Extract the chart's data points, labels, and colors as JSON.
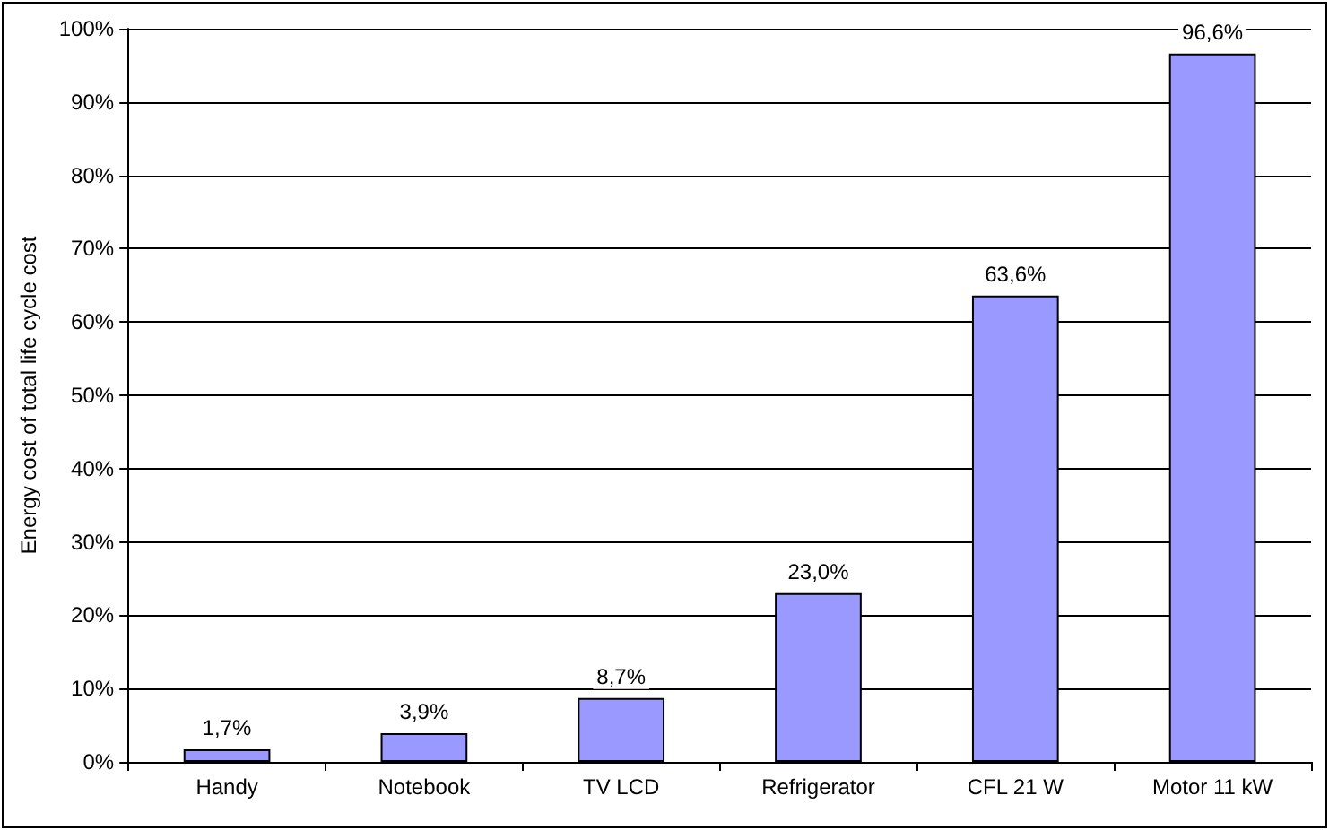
{
  "chart_data": {
    "type": "bar",
    "ylabel": "Energy cost of total life cycle cost",
    "categories": [
      "Handy",
      "Notebook",
      "TV LCD",
      "Refrigerator",
      "CFL 21 W",
      "Motor 11 kW"
    ],
    "values": [
      1.7,
      3.9,
      8.7,
      23.0,
      63.6,
      96.6
    ],
    "value_labels": [
      "1,7%",
      "3,9%",
      "8,7%",
      "23,0%",
      "63,6%",
      "96,6%"
    ],
    "color": "#9999ff",
    "ylim": [
      0,
      100
    ],
    "yticks": [
      {
        "value": 0,
        "label": "0%"
      },
      {
        "value": 10,
        "label": "10%"
      },
      {
        "value": 20,
        "label": "20%"
      },
      {
        "value": 30,
        "label": "30%"
      },
      {
        "value": 40,
        "label": "40%"
      },
      {
        "value": 50,
        "label": "50%"
      },
      {
        "value": 60,
        "label": "60%"
      },
      {
        "value": 70,
        "label": "70%"
      },
      {
        "value": 80,
        "label": "80%"
      },
      {
        "value": 90,
        "label": "90%"
      },
      {
        "value": 100,
        "label": "100%"
      }
    ],
    "grid": "y"
  }
}
